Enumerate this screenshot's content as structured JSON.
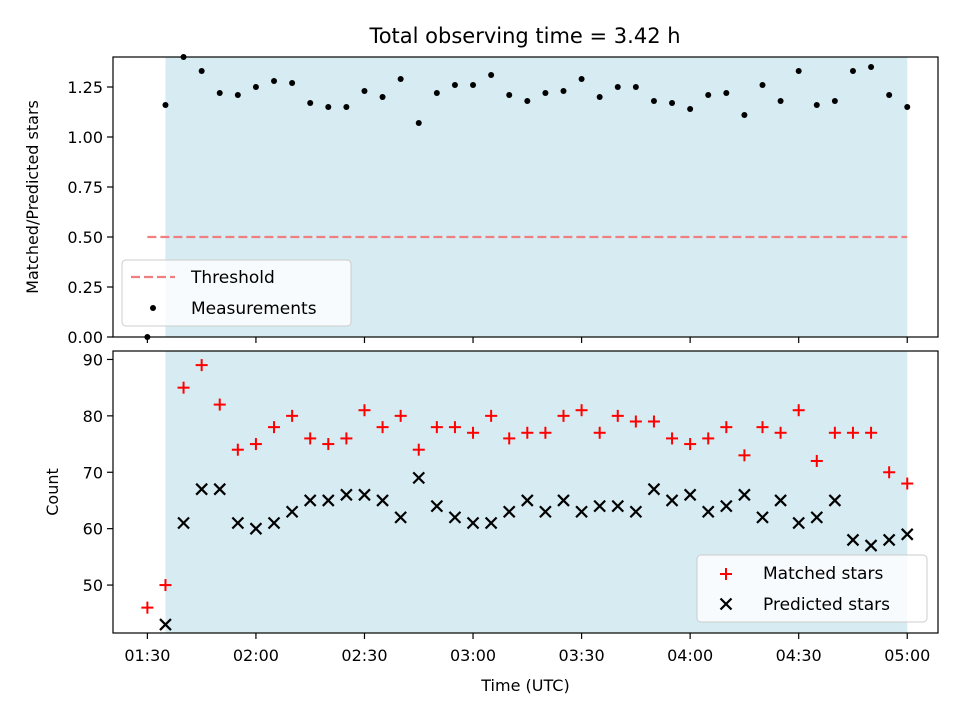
{
  "title": "Total observing time = 3.42 h",
  "colors": {
    "shade": "#add8e6",
    "threshold": "#f08080",
    "matched": "#ff0000",
    "predicted": "#000000",
    "measurement": "#000000"
  },
  "chart_data": [
    {
      "type": "scatter",
      "title": "Total observing time = 3.42 h",
      "xlabel": "",
      "ylabel": "Matched/Predicted stars",
      "ylim": [
        0,
        1.4
      ],
      "yticks": [
        "0.00",
        "0.25",
        "0.50",
        "0.75",
        "1.00",
        "1.25"
      ],
      "ytick_values": [
        0,
        0.25,
        0.5,
        0.75,
        1.0,
        1.25
      ],
      "x_time_minutes": [
        90,
        95,
        100,
        105,
        110,
        115,
        120,
        125,
        130,
        135,
        140,
        145,
        150,
        155,
        160,
        165,
        170,
        175,
        180,
        185,
        190,
        195,
        200,
        205,
        210,
        215,
        220,
        225,
        230,
        235,
        240,
        245,
        250,
        255,
        260,
        265,
        270,
        275,
        280,
        285,
        290,
        295,
        300
      ],
      "x_time_labels": [
        "01:30",
        "01:35",
        "01:40",
        "01:45",
        "01:50",
        "01:55",
        "02:00",
        "02:05",
        "02:10",
        "02:15",
        "02:20",
        "02:25",
        "02:30",
        "02:35",
        "02:40",
        "02:45",
        "02:50",
        "02:55",
        "03:00",
        "03:05",
        "03:10",
        "03:15",
        "03:20",
        "03:25",
        "03:30",
        "03:35",
        "03:40",
        "03:45",
        "03:50",
        "03:55",
        "04:00",
        "04:05",
        "04:10",
        "04:15",
        "04:20",
        "04:25",
        "04:30",
        "04:35",
        "04:40",
        "04:45",
        "04:50",
        "04:55",
        "05:00"
      ],
      "shaded_span": [
        "01:35",
        "05:00"
      ],
      "threshold": {
        "name": "Threshold",
        "value": 0.5,
        "x_range": [
          "01:30",
          "05:00"
        ]
      },
      "series": [
        {
          "name": "Measurements",
          "values": [
            0.0,
            1.16,
            1.4,
            1.33,
            1.22,
            1.21,
            1.25,
            1.28,
            1.27,
            1.17,
            1.15,
            1.15,
            1.23,
            1.2,
            1.29,
            1.07,
            1.22,
            1.26,
            1.26,
            1.31,
            1.21,
            1.18,
            1.22,
            1.23,
            1.29,
            1.2,
            1.25,
            1.25,
            1.18,
            1.17,
            1.14,
            1.21,
            1.22,
            1.11,
            1.26,
            1.18,
            1.33,
            1.16,
            1.18,
            1.33,
            1.35,
            1.21,
            1.15
          ]
        }
      ],
      "legend": {
        "placement": "lower-left",
        "entries": [
          "Threshold",
          "Measurements"
        ]
      }
    },
    {
      "type": "scatter",
      "xlabel": "Time (UTC)",
      "ylabel": "Count",
      "ylim": [
        41.5,
        91.5
      ],
      "yticks": [
        "50",
        "60",
        "70",
        "80",
        "90"
      ],
      "ytick_values": [
        50,
        60,
        70,
        80,
        90
      ],
      "xticks": [
        "01:30",
        "02:00",
        "02:30",
        "03:00",
        "03:30",
        "04:00",
        "04:30",
        "05:00"
      ],
      "xtick_values": [
        90,
        120,
        150,
        180,
        210,
        240,
        270,
        300
      ],
      "shaded_span": [
        "01:35",
        "05:00"
      ],
      "series": [
        {
          "name": "Matched stars",
          "values": [
            46,
            50,
            85,
            89,
            82,
            74,
            75,
            78,
            80,
            76,
            75,
            76,
            81,
            78,
            80,
            74,
            78,
            78,
            77,
            80,
            76,
            77,
            77,
            80,
            81,
            77,
            80,
            79,
            79,
            76,
            75,
            76,
            78,
            73,
            78,
            77,
            81,
            72,
            77,
            77,
            77,
            70,
            68
          ]
        },
        {
          "name": "Predicted stars",
          "values": [
            null,
            43,
            61,
            67,
            67,
            61,
            60,
            61,
            63,
            65,
            65,
            66,
            66,
            65,
            62,
            69,
            64,
            62,
            61,
            61,
            63,
            65,
            63,
            65,
            63,
            64,
            64,
            63,
            67,
            65,
            66,
            63,
            64,
            66,
            62,
            65,
            61,
            62,
            65,
            58,
            57,
            58,
            59
          ]
        }
      ],
      "legend": {
        "placement": "lower-right",
        "entries": [
          "Matched stars",
          "Predicted stars"
        ]
      }
    }
  ]
}
